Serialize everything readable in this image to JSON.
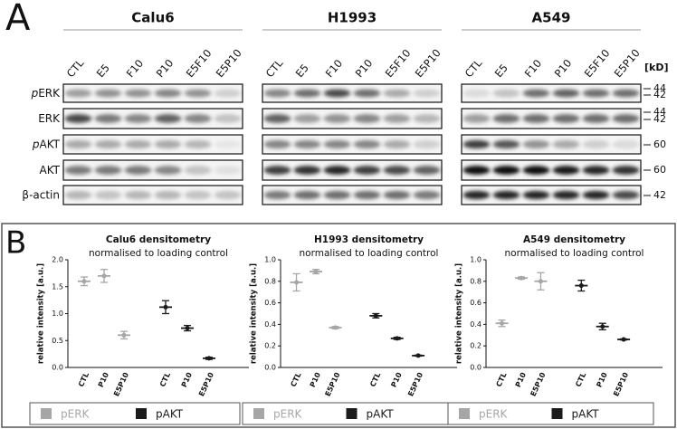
{
  "panel_a": {
    "label": "A",
    "cell_lines": [
      "Calu6",
      "H1993",
      "A549"
    ],
    "lanes": [
      [
        "CTL",
        "E5",
        "F10",
        "P10",
        "E5F10",
        "E5P10"
      ],
      [
        "CTL",
        "E5",
        "F10",
        "P10",
        "E5F10",
        "E5P10"
      ],
      [
        "CTL",
        "E5",
        "F10",
        "P10",
        "E5F10",
        "E5P10"
      ]
    ],
    "proteins": [
      {
        "prefix": "p",
        "name": "ERK"
      },
      {
        "name": "ERK"
      },
      {
        "prefix": "p",
        "name": "AKT"
      },
      {
        "name": "AKT"
      },
      {
        "name": "β-actin"
      }
    ],
    "kd_header": "[kD]",
    "kd_markers": [
      "44",
      "42",
      "44",
      "42",
      "60",
      "60",
      "42"
    ]
  },
  "panel_b": {
    "label": "B"
  },
  "chart_data": [
    {
      "type": "errorbar",
      "title": "Calu6 densitometry",
      "subtitle": "normalised to loading control",
      "y_label": "relative intensity [a.u.]",
      "categories": [
        "CTL",
        "P10",
        "E5P10",
        "CTL",
        "P10",
        "E5P10"
      ],
      "series": [
        {
          "name": "pERK",
          "color": "#a6a6a6",
          "values": [
            1.6,
            1.7,
            0.6,
            null,
            null,
            null
          ],
          "errors": [
            0.08,
            0.12,
            0.07,
            null,
            null,
            null
          ]
        },
        {
          "name": "pAKT",
          "color": "#1a1a1a",
          "values": [
            null,
            null,
            null,
            1.12,
            0.73,
            0.17
          ],
          "errors": [
            null,
            null,
            null,
            0.12,
            0.05,
            0.02
          ]
        }
      ],
      "ylim": [
        0,
        2
      ],
      "yticks": [
        {
          "value": 0,
          "label": "0.0"
        },
        0.5,
        {
          "value": 1,
          "label": "1.0"
        },
        1.5,
        {
          "value": 2,
          "label": "2.0"
        }
      ]
    },
    {
      "type": "errorbar",
      "title": "H1993 densitometry",
      "subtitle": "normalised to loading control",
      "y_label": "relative intensity [a.u.]",
      "categories": [
        "CTL",
        "P10",
        "E5P10",
        "CTL",
        "P10",
        "E5P10"
      ],
      "series": [
        {
          "name": "pERK",
          "color": "#a6a6a6",
          "values": [
            0.79,
            0.89,
            0.37,
            null,
            null,
            null
          ],
          "errors": [
            0.08,
            0.02,
            0.01,
            null,
            null,
            null
          ]
        },
        {
          "name": "pAKT",
          "color": "#1a1a1a",
          "values": [
            null,
            null,
            null,
            0.48,
            0.27,
            0.11
          ],
          "errors": [
            null,
            null,
            null,
            0.02,
            0.01,
            0.005
          ]
        }
      ],
      "ylim": [
        0,
        1
      ],
      "yticks": [
        {
          "value": 0,
          "label": "0.0"
        },
        0.2,
        0.4,
        0.6,
        0.8,
        {
          "value": 1,
          "label": "1.0"
        }
      ]
    },
    {
      "type": "errorbar",
      "title": "A549 densitometry",
      "subtitle": "normalised to loading control",
      "y_label": "relative intensity [a.u.]",
      "categories": [
        "CTL",
        "P10",
        "E5P10",
        "CTL",
        "P10",
        "E5P10"
      ],
      "series": [
        {
          "name": "pERK",
          "color": "#a6a6a6",
          "values": [
            0.41,
            0.83,
            0.8,
            null,
            null,
            null
          ],
          "errors": [
            0.03,
            0.01,
            0.08,
            null,
            null,
            null
          ]
        },
        {
          "name": "pAKT",
          "color": "#1a1a1a",
          "values": [
            null,
            null,
            null,
            0.76,
            0.38,
            0.26
          ],
          "errors": [
            null,
            null,
            null,
            0.05,
            0.03,
            0.005
          ]
        }
      ],
      "ylim": [
        0,
        1
      ],
      "yticks": [
        {
          "value": 0,
          "label": "0.0"
        },
        0.2,
        0.4,
        0.6,
        0.8,
        {
          "value": 1,
          "label": "1.0"
        }
      ]
    }
  ]
}
